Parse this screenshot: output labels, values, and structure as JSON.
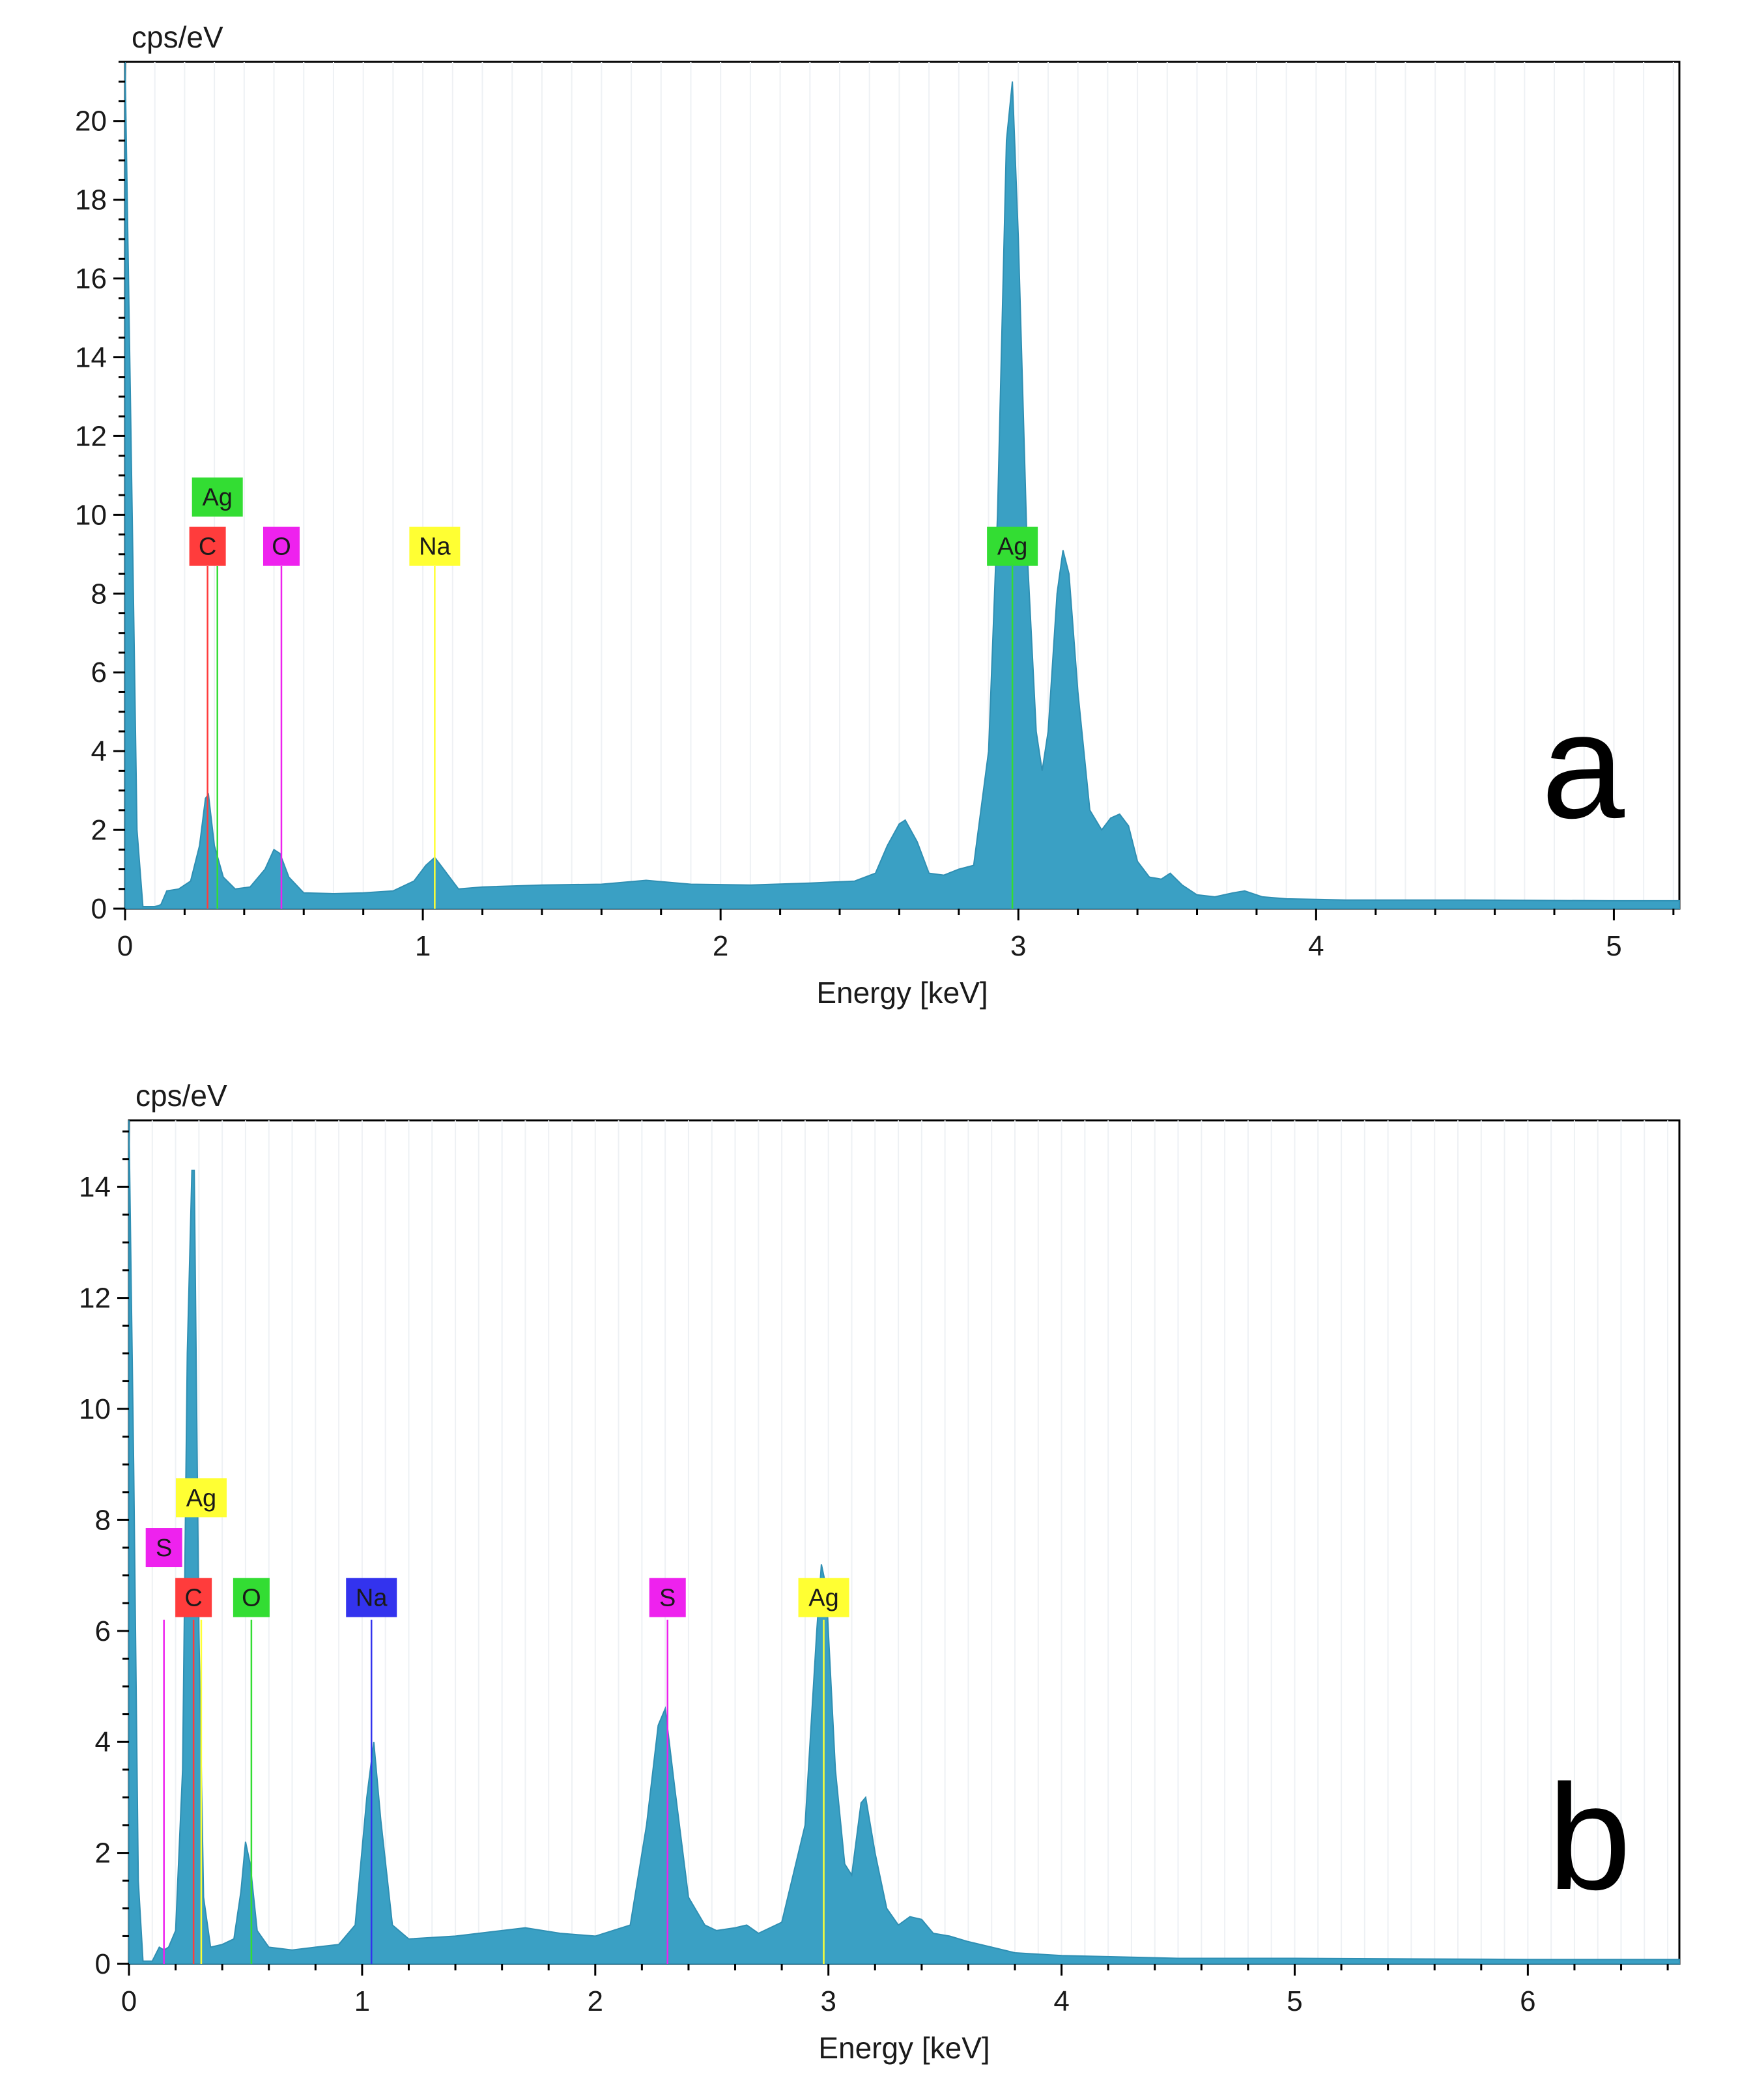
{
  "chart_data": [
    {
      "type": "area",
      "panel_label": "a",
      "ylabel": "cps/eV",
      "xlabel": "Energy [keV]",
      "xlim": [
        0,
        5.22
      ],
      "ylim": [
        0,
        21.5
      ],
      "x_ticks": [
        0,
        1,
        2,
        3,
        4,
        5
      ],
      "x_tick_labels": [
        "0",
        "1",
        "2",
        "3",
        "4",
        "5"
      ],
      "y_ticks": [
        0,
        2,
        4,
        6,
        8,
        10,
        12,
        14,
        16,
        18,
        20
      ],
      "y_tick_labels": [
        "0",
        "2",
        "4",
        "6",
        "8",
        "10",
        "12",
        "14",
        "16",
        "18",
        "20"
      ],
      "series": [
        {
          "name": "spectrum",
          "color": "#3aa0c4",
          "x": [
            0,
            0.02,
            0.04,
            0.06,
            0.1,
            0.12,
            0.14,
            0.18,
            0.22,
            0.25,
            0.27,
            0.28,
            0.3,
            0.33,
            0.37,
            0.42,
            0.47,
            0.5,
            0.52,
            0.55,
            0.6,
            0.7,
            0.8,
            0.9,
            0.97,
            1.01,
            1.04,
            1.07,
            1.12,
            1.2,
            1.4,
            1.6,
            1.75,
            1.9,
            2.1,
            2.3,
            2.45,
            2.52,
            2.56,
            2.6,
            2.62,
            2.66,
            2.7,
            2.75,
            2.8,
            2.85,
            2.9,
            2.93,
            2.96,
            2.98,
            3.0,
            3.03,
            3.06,
            3.08,
            3.1,
            3.13,
            3.15,
            3.17,
            3.2,
            3.24,
            3.28,
            3.31,
            3.34,
            3.37,
            3.4,
            3.44,
            3.48,
            3.51,
            3.55,
            3.6,
            3.66,
            3.72,
            3.76,
            3.82,
            3.9,
            4.1,
            4.5,
            5.0,
            5.22
          ],
          "y": [
            21.5,
            12,
            2,
            0.05,
            0.05,
            0.1,
            0.45,
            0.5,
            0.7,
            1.6,
            2.8,
            2.9,
            1.6,
            0.8,
            0.5,
            0.55,
            1.0,
            1.5,
            1.4,
            0.8,
            0.4,
            0.38,
            0.4,
            0.45,
            0.7,
            1.1,
            1.3,
            1.0,
            0.5,
            0.55,
            0.6,
            0.62,
            0.72,
            0.62,
            0.6,
            0.65,
            0.7,
            0.9,
            1.6,
            2.15,
            2.25,
            1.7,
            0.9,
            0.85,
            1.0,
            1.1,
            4.0,
            10,
            19.5,
            21.0,
            17,
            9,
            4.5,
            3.5,
            4.5,
            8.0,
            9.1,
            8.5,
            5.5,
            2.5,
            2.0,
            2.3,
            2.4,
            2.1,
            1.2,
            0.8,
            0.75,
            0.9,
            0.6,
            0.35,
            0.3,
            0.4,
            0.45,
            0.3,
            0.25,
            0.22,
            0.22,
            0.2,
            0.2
          ]
        }
      ],
      "element_markers": [
        {
          "symbol": "Ag",
          "energy": 0.31,
          "bg": "#33dd33",
          "text_color": "#1a1a1a",
          "line_top": 8.7,
          "label_y": 10.45
        },
        {
          "symbol": "C",
          "energy": 0.277,
          "bg": "#ff3c3c",
          "text_color": "#1a1a1a",
          "line_top": 8.7,
          "label_y": 9.2
        },
        {
          "symbol": "O",
          "energy": 0.525,
          "bg": "#ee22ee",
          "text_color": "#ffffff",
          "line_top": 8.7,
          "label_y": 9.2
        },
        {
          "symbol": "Na",
          "energy": 1.04,
          "bg": "#ffff33",
          "text_color": "#1a1a1a",
          "line_top": 8.7,
          "label_y": 9.2
        },
        {
          "symbol": "Ag",
          "energy": 2.98,
          "bg": "#33dd33",
          "text_color": "#1a1a1a",
          "line_top": 8.7,
          "label_y": 9.2
        }
      ]
    },
    {
      "type": "area",
      "panel_label": "b",
      "ylabel": "cps/eV",
      "xlabel": "Energy [keV]",
      "xlim": [
        0,
        6.65
      ],
      "ylim": [
        0,
        15.2
      ],
      "x_ticks": [
        0,
        1,
        2,
        3,
        4,
        5,
        6
      ],
      "x_tick_labels": [
        "0",
        "1",
        "2",
        "3",
        "4",
        "5",
        "6"
      ],
      "y_ticks": [
        0,
        2,
        4,
        6,
        8,
        10,
        12,
        14
      ],
      "y_tick_labels": [
        "0",
        "2",
        "4",
        "6",
        "8",
        "10",
        "12",
        "14"
      ],
      "series": [
        {
          "name": "spectrum",
          "color": "#3aa0c4",
          "x": [
            0,
            0.02,
            0.04,
            0.06,
            0.1,
            0.13,
            0.15,
            0.17,
            0.2,
            0.23,
            0.25,
            0.27,
            0.28,
            0.3,
            0.32,
            0.35,
            0.4,
            0.45,
            0.48,
            0.5,
            0.52,
            0.55,
            0.6,
            0.7,
            0.8,
            0.9,
            0.97,
            1.02,
            1.05,
            1.08,
            1.13,
            1.2,
            1.4,
            1.6,
            1.7,
            1.85,
            2.0,
            2.15,
            2.22,
            2.27,
            2.3,
            2.34,
            2.4,
            2.47,
            2.52,
            2.6,
            2.65,
            2.7,
            2.8,
            2.9,
            2.95,
            2.97,
            2.99,
            3.03,
            3.07,
            3.1,
            3.14,
            3.16,
            3.2,
            3.25,
            3.3,
            3.35,
            3.4,
            3.45,
            3.52,
            3.6,
            3.7,
            3.8,
            4.0,
            4.5,
            5.0,
            6.0,
            6.65
          ],
          "y": [
            15.2,
            9,
            1.5,
            0.05,
            0.05,
            0.3,
            0.25,
            0.3,
            0.6,
            3.5,
            11,
            14.3,
            14.3,
            6,
            1.2,
            0.3,
            0.35,
            0.45,
            1.3,
            2.2,
            1.8,
            0.6,
            0.3,
            0.25,
            0.3,
            0.35,
            0.7,
            3.0,
            4.0,
            2.6,
            0.7,
            0.45,
            0.5,
            0.6,
            0.65,
            0.55,
            0.5,
            0.7,
            2.5,
            4.3,
            4.6,
            3.2,
            1.2,
            0.7,
            0.6,
            0.65,
            0.7,
            0.55,
            0.75,
            2.5,
            6.0,
            7.2,
            6.8,
            3.5,
            1.8,
            1.6,
            2.9,
            3.0,
            2.0,
            1.0,
            0.7,
            0.85,
            0.8,
            0.55,
            0.5,
            0.4,
            0.3,
            0.2,
            0.15,
            0.1,
            0.1,
            0.08,
            0.08
          ]
        }
      ],
      "element_markers": [
        {
          "symbol": "S",
          "energy": 0.15,
          "bg": "#ee22ee",
          "text_color": "#1a1a1a",
          "line_top": 6.2,
          "label_y": 7.5
        },
        {
          "symbol": "Ag",
          "energy": 0.31,
          "bg": "#ffff33",
          "text_color": "#1a1a1a",
          "line_top": 6.2,
          "label_y": 8.4
        },
        {
          "symbol": "C",
          "energy": 0.277,
          "bg": "#ff3c3c",
          "text_color": "#1a1a1a",
          "line_top": 6.2,
          "label_y": 6.6
        },
        {
          "symbol": "O",
          "energy": 0.525,
          "bg": "#33dd33",
          "text_color": "#1a1a1a",
          "line_top": 6.2,
          "label_y": 6.6
        },
        {
          "symbol": "Na",
          "energy": 1.04,
          "bg": "#3333ee",
          "text_color": "#ffffff",
          "line_top": 6.2,
          "label_y": 6.6
        },
        {
          "symbol": "S",
          "energy": 2.31,
          "bg": "#ee22ee",
          "text_color": "#1a1a1a",
          "line_top": 6.2,
          "label_y": 6.6
        },
        {
          "symbol": "Ag",
          "energy": 2.98,
          "bg": "#ffff33",
          "text_color": "#1a1a1a",
          "line_top": 6.2,
          "label_y": 6.6
        }
      ]
    }
  ]
}
